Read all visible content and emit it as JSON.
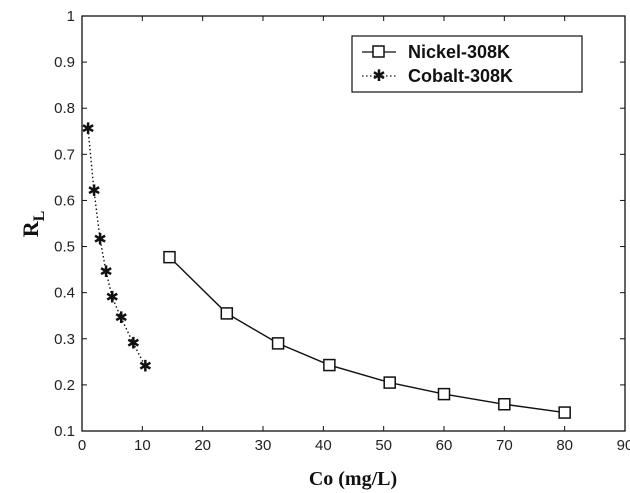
{
  "chart_data": {
    "type": "line",
    "xlabel": "Co (mg/L)",
    "ylabel": {
      "main": "R",
      "sub": "L"
    },
    "xlim": [
      0,
      90
    ],
    "ylim": [
      0.1,
      1
    ],
    "x_ticks": [
      "0",
      "10",
      "20",
      "30",
      "40",
      "50",
      "60",
      "70",
      "80",
      "90"
    ],
    "y_ticks": [
      "0.1",
      "0.2",
      "0.3",
      "0.4",
      "0.5",
      "0.6",
      "0.7",
      "0.8",
      "0.9",
      "1"
    ],
    "grid": false,
    "legend_position": "top-right",
    "series": [
      {
        "name": "Nickel-308K",
        "marker": "square",
        "line_style": "solid",
        "color": "#111111",
        "x": [
          14.5,
          24,
          32.5,
          41,
          51,
          60,
          70,
          80
        ],
        "y": [
          0.477,
          0.355,
          0.29,
          0.243,
          0.205,
          0.18,
          0.158,
          0.14
        ]
      },
      {
        "name": "Cobalt-308K",
        "marker": "star",
        "line_style": "dotted",
        "color": "#111111",
        "x": [
          1,
          2,
          3,
          4,
          5,
          6.5,
          8.5,
          10.5
        ],
        "y": [
          0.755,
          0.62,
          0.515,
          0.445,
          0.39,
          0.345,
          0.29,
          0.24
        ]
      }
    ]
  }
}
